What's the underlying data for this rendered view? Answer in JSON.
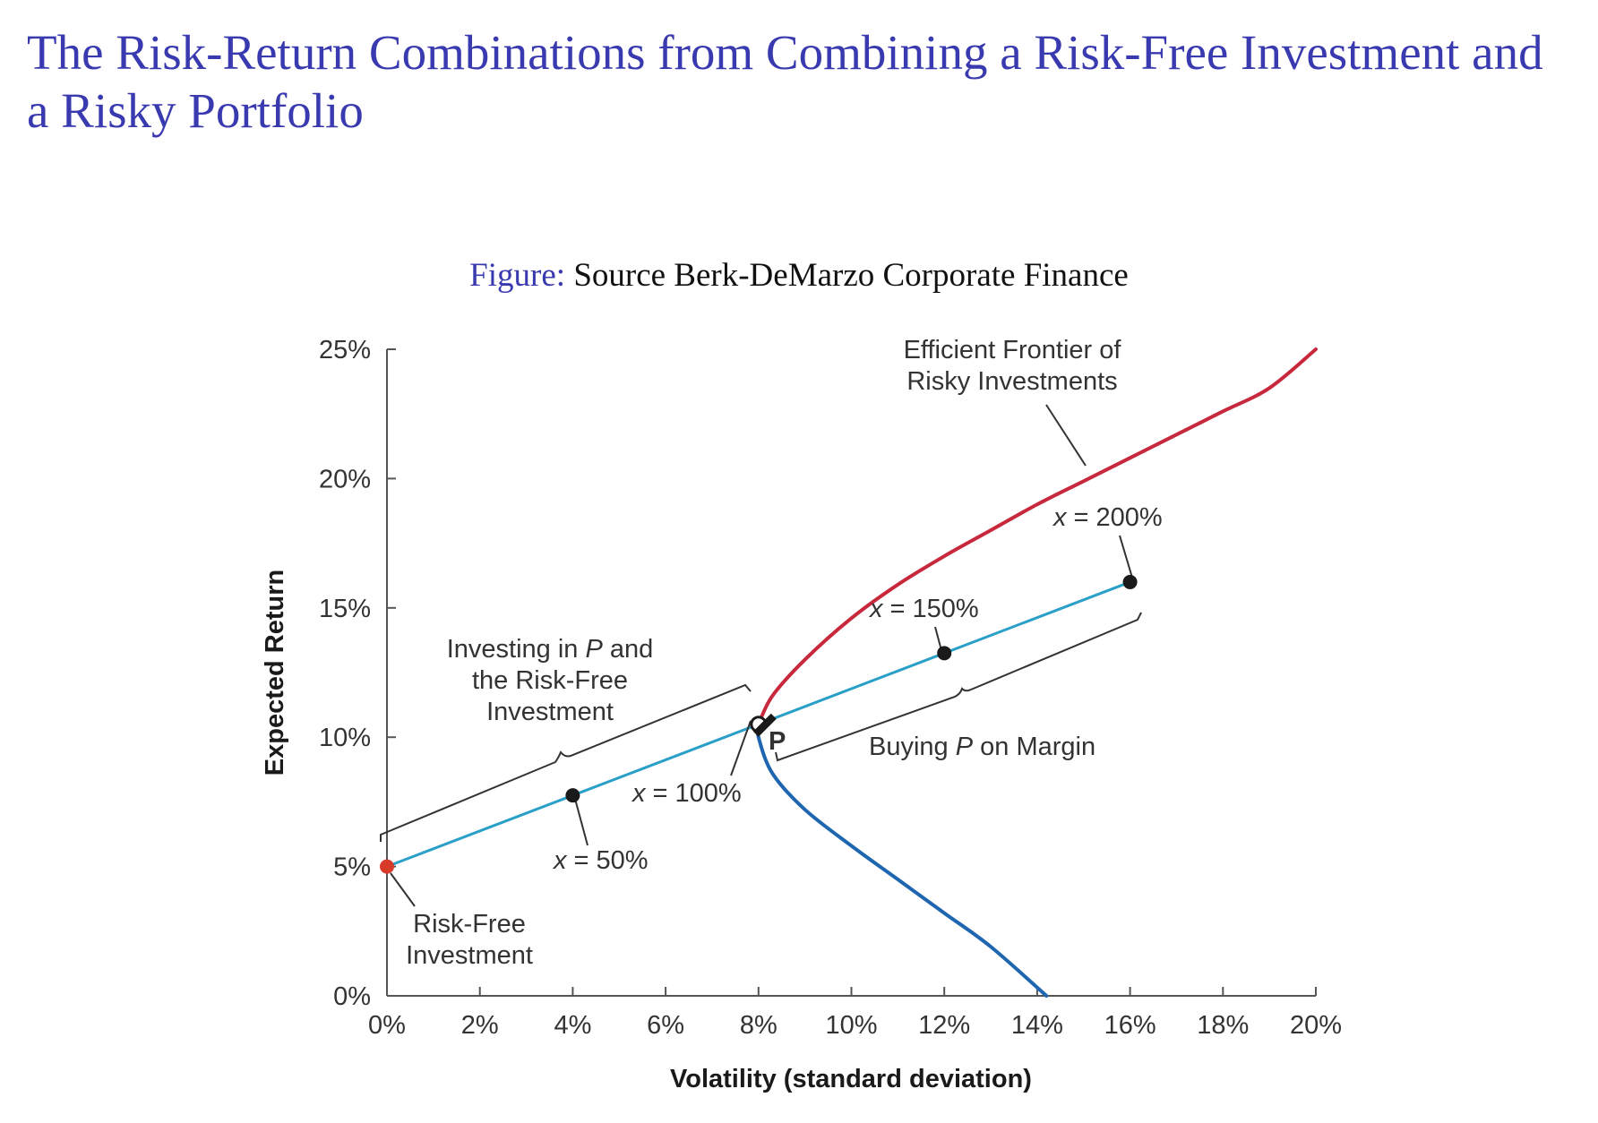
{
  "slide": {
    "title": "The Risk-Return Combinations from Combining a Risk-Free Investment and a Risky Portfolio",
    "caption_label": "Figure:",
    "caption_text": " Source Berk-DeMarzo Corporate Finance"
  },
  "chart_data": {
    "type": "line",
    "xlabel": "Volatility (standard deviation)",
    "ylabel": "Expected Return",
    "xlim": [
      0,
      20
    ],
    "ylim": [
      0,
      25
    ],
    "x_ticks": [
      0,
      2,
      4,
      6,
      8,
      10,
      12,
      14,
      16,
      18,
      20
    ],
    "x_tick_labels": [
      "0%",
      "2%",
      "4%",
      "6%",
      "8%",
      "10%",
      "12%",
      "14%",
      "16%",
      "18%",
      "20%"
    ],
    "y_ticks": [
      0,
      5,
      10,
      15,
      20,
      25
    ],
    "y_tick_labels": [
      "0%",
      "5%",
      "10%",
      "15%",
      "20%",
      "25%"
    ],
    "grid": false,
    "colors": {
      "frontier_upper": "#c8283c",
      "frontier_lower": "#1f66b0",
      "capital_line": "#2aa0c8",
      "risk_free_point": "#d83a2a",
      "point": "#1a1a1a"
    },
    "series": [
      {
        "key": "frontier_upper",
        "x": [
          8.0,
          8.3,
          9.0,
          10.0,
          11.0,
          12.0,
          13.0,
          14.0,
          15.0,
          16.0,
          17.0,
          18.0,
          19.0,
          20.0
        ],
        "y": [
          10.5,
          11.6,
          13.0,
          14.6,
          15.9,
          17.0,
          18.0,
          19.0,
          19.9,
          20.8,
          21.7,
          22.6,
          23.5,
          25.0
        ]
      },
      {
        "key": "frontier_lower",
        "x": [
          8.0,
          8.0,
          8.3,
          9.0,
          10.0,
          11.0,
          12.0,
          13.0,
          14.2
        ],
        "y": [
          10.5,
          10.0,
          8.6,
          7.2,
          5.8,
          4.5,
          3.2,
          1.9,
          0.0
        ]
      },
      {
        "key": "capital_line",
        "x": [
          0,
          16
        ],
        "y": [
          5,
          16
        ]
      }
    ],
    "points": [
      {
        "key": "risk_free",
        "x": 0,
        "y": 5
      },
      {
        "key": "x50",
        "x": 4,
        "y": 7.75
      },
      {
        "key": "P",
        "x": 8,
        "y": 10.5
      },
      {
        "key": "x150",
        "x": 12,
        "y": 13.25
      },
      {
        "key": "x200",
        "x": 16,
        "y": 16
      }
    ],
    "annotations": {
      "frontier_line1": "Efficient Frontier of",
      "frontier_line2": "Risky Investments",
      "x200_var": "x",
      "x200_val": " = 200%",
      "x150_var": "x",
      "x150_val": " = 150%",
      "x100_var": "x",
      "x100_val": " = 100%",
      "x50_var": "x",
      "x50_val": " = 50%",
      "investing_line1_a": "Investing in ",
      "investing_line1_p": "P",
      "investing_line1_b": " and",
      "investing_line2": "the Risk-Free",
      "investing_line3": "Investment",
      "margin_a": "Buying ",
      "margin_p": "P",
      "margin_b": " on Margin",
      "point_p": "P",
      "riskfree_line1": "Risk-Free",
      "riskfree_line2": "Investment"
    }
  }
}
